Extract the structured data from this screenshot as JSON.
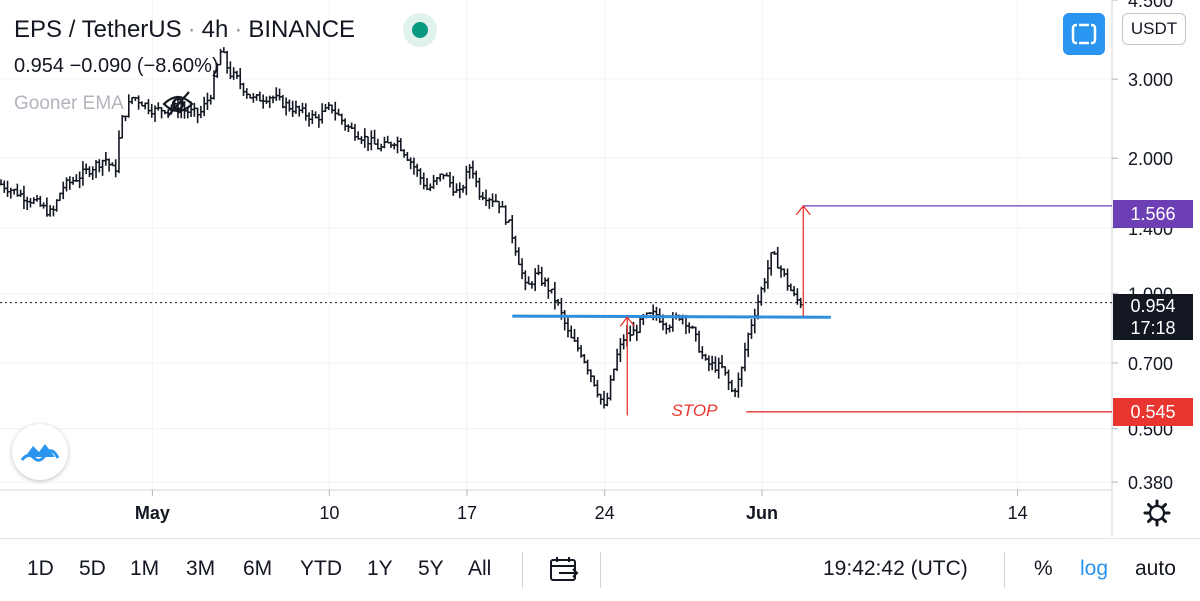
{
  "header": {
    "symbol": "EPS / TetherUS",
    "interval": "4h",
    "exchange": "BINANCE",
    "separator": "·",
    "ohlc_line": "0.954  −0.090 (−8.60%)",
    "indicator_label": "Gooner EMA",
    "currency_button": "USDT"
  },
  "price_tags": {
    "target": {
      "value": "1.566",
      "color": "#6c3fb5"
    },
    "current": {
      "value": "0.954",
      "countdown": "17:18",
      "color": "#131722"
    },
    "stop": {
      "value": "0.545",
      "color": "#e8352f"
    }
  },
  "annotations": {
    "stop_label": "STOP"
  },
  "bottom_bar": {
    "ranges": [
      "1D",
      "5D",
      "1M",
      "3M",
      "6M",
      "YTD",
      "1Y",
      "5Y",
      "All"
    ],
    "clock": "19:42:42 (UTC)",
    "percent_label": "%",
    "log_label": "log",
    "auto_label": "auto"
  },
  "icons": [
    "status-dot-icon",
    "eye-off-icon",
    "fullscreen-icon",
    "tradingview-logo-icon",
    "gear-icon",
    "calendar-range-icon"
  ],
  "colors": {
    "neckline": "#2f8fdd",
    "target": "#6c3fb5",
    "stop": "#e8352f",
    "arrow": "#e8352f",
    "candles": "#131722",
    "accent": "#2a95f0"
  },
  "chart_data": {
    "type": "ohlc",
    "title": "EPS / TetherUS · 4h · BINANCE",
    "y_scale": "log",
    "ylim": [
      0.365,
      4.5
    ],
    "y_ticks": [
      {
        "value": 4.5,
        "label": "4.500"
      },
      {
        "value": 3.0,
        "label": "3.000"
      },
      {
        "value": 2.0,
        "label": "2.000"
      },
      {
        "value": 1.4,
        "label": "1.400"
      },
      {
        "value": 1.0,
        "label": "1.000"
      },
      {
        "value": 0.7,
        "label": "0.700"
      },
      {
        "value": 0.5,
        "label": "0.500"
      },
      {
        "value": 0.38,
        "label": "0.380"
      }
    ],
    "x_ticks": [
      {
        "day": 1,
        "label": "May",
        "bold": true
      },
      {
        "day": 10,
        "label": "10"
      },
      {
        "day": 17,
        "label": "17"
      },
      {
        "day": 24,
        "label": "24"
      },
      {
        "day": 32,
        "label": "Jun",
        "bold": true
      },
      {
        "day": 45,
        "label": "14"
      }
    ],
    "xlim_days": [
      -6.75,
      49.8
    ],
    "close_path": [
      [
        -6.7,
        1.75
      ],
      [
        -5.0,
        1.6
      ],
      [
        -4.1,
        1.5
      ],
      [
        -3.6,
        1.72
      ],
      [
        -2.5,
        1.85
      ],
      [
        -1.4,
        2.0
      ],
      [
        -0.9,
        1.85
      ],
      [
        -0.6,
        2.4
      ],
      [
        0.0,
        2.75
      ],
      [
        1.1,
        2.55
      ],
      [
        2.0,
        2.6
      ],
      [
        3.4,
        2.5
      ],
      [
        4.0,
        2.8
      ],
      [
        4.5,
        3.5
      ],
      [
        4.9,
        3.1
      ],
      [
        5.3,
        3.0
      ],
      [
        6.1,
        2.7
      ],
      [
        7.0,
        2.75
      ],
      [
        8.0,
        2.6
      ],
      [
        9.3,
        2.45
      ],
      [
        10.1,
        2.6
      ],
      [
        10.9,
        2.35
      ],
      [
        11.9,
        2.2
      ],
      [
        12.6,
        2.1
      ],
      [
        13.4,
        2.2
      ],
      [
        14.2,
        1.95
      ],
      [
        15.0,
        1.7
      ],
      [
        15.8,
        1.85
      ],
      [
        16.6,
        1.65
      ],
      [
        17.2,
        1.95
      ],
      [
        17.6,
        1.68
      ],
      [
        18.6,
        1.6
      ],
      [
        19.2,
        1.4
      ],
      [
        19.6,
        1.2
      ],
      [
        20.0,
        1.02
      ],
      [
        20.5,
        1.1
      ],
      [
        21.0,
        1.05
      ],
      [
        21.6,
        0.95
      ],
      [
        22.2,
        0.8
      ],
      [
        22.8,
        0.74
      ],
      [
        23.5,
        0.63
      ],
      [
        24.0,
        0.55
      ],
      [
        24.6,
        0.72
      ],
      [
        25.0,
        0.8
      ],
      [
        25.5,
        0.82
      ],
      [
        26.0,
        0.88
      ],
      [
        26.6,
        0.9
      ],
      [
        27.2,
        0.85
      ],
      [
        27.9,
        0.9
      ],
      [
        28.5,
        0.82
      ],
      [
        29.1,
        0.7
      ],
      [
        30.0,
        0.68
      ],
      [
        30.5,
        0.6
      ],
      [
        30.9,
        0.65
      ],
      [
        31.2,
        0.78
      ],
      [
        31.6,
        0.9
      ],
      [
        32.2,
        1.1
      ],
      [
        32.5,
        1.22
      ],
      [
        32.9,
        1.15
      ],
      [
        33.3,
        1.05
      ],
      [
        33.7,
        0.97
      ],
      [
        34.0,
        0.954
      ]
    ]
  }
}
